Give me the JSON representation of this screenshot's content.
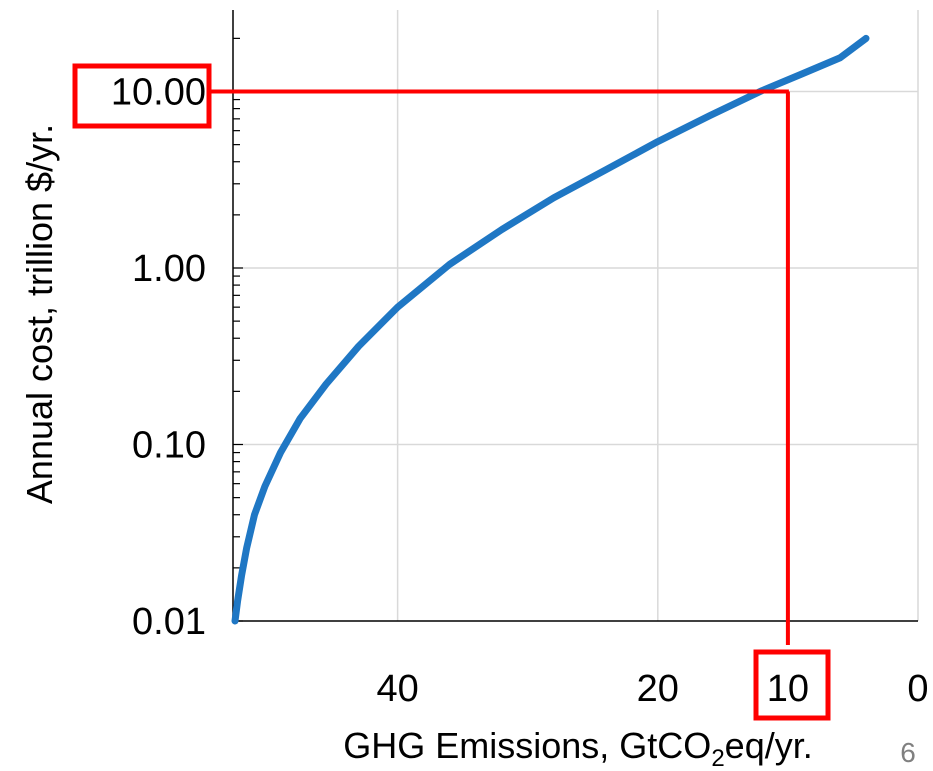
{
  "chart_data": {
    "type": "line",
    "title": "",
    "xlabel": "GHG Emissions, GtCO2eq/yr.",
    "xlabel_parts": {
      "pre": "GHG Emissions, GtCO",
      "sub": "2",
      "post": "eq/yr."
    },
    "ylabel": "Annual cost, trillion $/yr.",
    "x_scale": "linear",
    "x_reversed": true,
    "xlim": [
      0,
      54
    ],
    "y_scale": "log",
    "ylim": [
      0.01,
      40
    ],
    "x_ticks": [
      {
        "value": 40,
        "label": "40"
      },
      {
        "value": 20,
        "label": "20"
      },
      {
        "value": 10,
        "label": "10"
      },
      {
        "value": 0,
        "label": "0"
      }
    ],
    "y_ticks": [
      {
        "value": 0.01,
        "label": "0.01"
      },
      {
        "value": 0.1,
        "label": "0.10"
      },
      {
        "value": 1,
        "label": "1.00"
      },
      {
        "value": 10,
        "label": "10.00"
      }
    ],
    "x_gridlines": [
      40,
      20,
      0
    ],
    "y_gridlines": [
      0.1,
      1,
      10
    ],
    "series": [
      {
        "color": "#1f77c4",
        "x": [
          52.5,
          52.3,
          52.0,
          51.6,
          51.0,
          50.2,
          49.0,
          47.5,
          45.5,
          43.0,
          40.0,
          36.0,
          32.0,
          28.0,
          24.0,
          20.0,
          16.0,
          12.0,
          9.0,
          6.0,
          4.0
        ],
        "y": [
          0.01,
          0.013,
          0.018,
          0.026,
          0.04,
          0.058,
          0.09,
          0.14,
          0.22,
          0.36,
          0.6,
          1.05,
          1.65,
          2.5,
          3.6,
          5.2,
          7.3,
          10.1,
          12.5,
          15.5,
          20.0
        ]
      }
    ],
    "annotations": [
      {
        "kind": "highlight",
        "color": "#ff0000",
        "x": 10,
        "y": 10,
        "boxed_labels": [
          "10.00",
          "10"
        ]
      }
    ]
  },
  "slide_number": "6"
}
